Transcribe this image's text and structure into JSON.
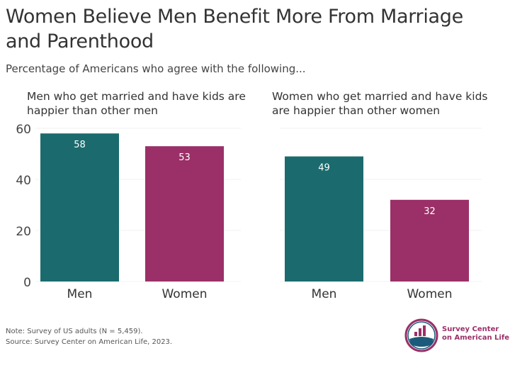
{
  "chart_data": [
    {
      "type": "bar",
      "title": "Men who get married and have kids are happier than other men",
      "categories": [
        "Men",
        "Women"
      ],
      "values": [
        58,
        53
      ],
      "data_labels": [
        "58",
        "53"
      ],
      "ylim": [
        0,
        60
      ],
      "yticks": [
        "0",
        "20",
        "40",
        "60"
      ],
      "grid": true,
      "colors": [
        "#1b6b6e",
        "#9a3067"
      ]
    },
    {
      "type": "bar",
      "title": "Women who get married and have kids are happier than other women",
      "categories": [
        "Men",
        "Women"
      ],
      "values": [
        49,
        32
      ],
      "data_labels": [
        "49",
        "32"
      ],
      "ylim": [
        0,
        60
      ],
      "grid": true,
      "colors": [
        "#1b6b6e",
        "#9a3067"
      ]
    }
  ],
  "header": {
    "title": "Women Believe Men Benefit More From Marriage and Parenthood",
    "subtitle": "Percentage of Americans who agree with the following..."
  },
  "footer": {
    "note": "Note: Survey of US adults (N = 5,459).",
    "source": "Source: Survey Center on American Life, 2023.",
    "logo_line1": "Survey Center",
    "logo_line2": "on American Life"
  }
}
